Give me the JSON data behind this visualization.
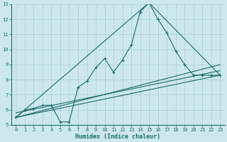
{
  "xlabel": "Humidex (Indice chaleur)",
  "bg_color": "#cde8ec",
  "grid_color": "#aacdd4",
  "line_color": "#1a6b6b",
  "xlim": [
    -0.5,
    23.5
  ],
  "ylim": [
    5,
    13
  ],
  "xticks": [
    0,
    1,
    2,
    3,
    4,
    5,
    6,
    7,
    8,
    9,
    10,
    11,
    12,
    13,
    14,
    15,
    16,
    17,
    18,
    19,
    20,
    21,
    22,
    23
  ],
  "yticks": [
    5,
    6,
    7,
    8,
    9,
    10,
    11,
    12,
    13
  ],
  "series1_x": [
    0,
    1,
    2,
    3,
    4,
    5,
    6,
    7,
    8,
    9,
    10,
    11,
    12,
    13,
    14,
    15,
    16,
    17,
    18,
    19,
    20,
    21,
    22,
    23
  ],
  "series1_y": [
    5.5,
    6.0,
    6.1,
    6.3,
    6.3,
    5.2,
    5.2,
    7.5,
    7.9,
    8.8,
    9.4,
    8.5,
    9.3,
    10.3,
    12.5,
    13.1,
    12.0,
    11.1,
    9.9,
    9.0,
    8.3,
    8.3,
    8.3,
    8.3
  ],
  "line2_x": [
    0,
    23
  ],
  "line2_y": [
    5.5,
    8.3
  ],
  "line3_x": [
    0,
    15,
    23
  ],
  "line3_y": [
    5.5,
    13.1,
    8.3
  ],
  "line4_x": [
    0,
    23
  ],
  "line4_y": [
    5.8,
    8.6
  ],
  "line5_x": [
    0,
    23
  ],
  "line5_y": [
    5.5,
    9.0
  ],
  "marker": "+",
  "markersize": 3.5,
  "linewidth": 0.8,
  "tick_fontsize": 5.0,
  "xlabel_fontsize": 6.0
}
